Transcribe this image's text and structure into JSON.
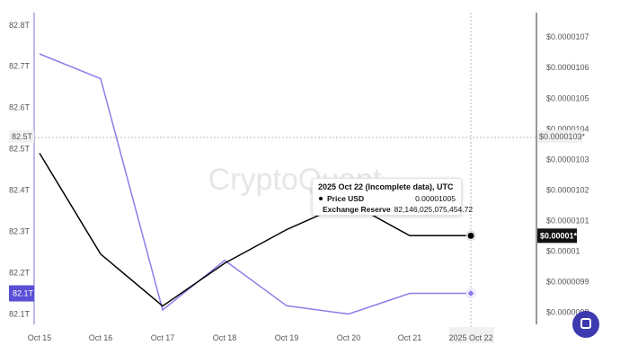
{
  "chart_data": {
    "type": "line",
    "x": [
      "Oct 15",
      "Oct 16",
      "Oct 17",
      "Oct 18",
      "Oct 19",
      "Oct 20",
      "Oct 21",
      "2025 Oct 22"
    ],
    "series": [
      {
        "name": "Price USD",
        "axis": "right",
        "color": "#000000",
        "values": [
          1.032e-05,
          9.99e-06,
          9.82e-06,
          9.96e-06,
          1.007e-05,
          1.016e-05,
          1.005e-05,
          1.005e-05
        ]
      },
      {
        "name": "Exchange Reserve",
        "axis": "left",
        "color": "#8a7fe8",
        "values": [
          82.73,
          82.67,
          82.11,
          82.23,
          82.12,
          82.1,
          82.15,
          82.15
        ]
      }
    ],
    "left_axis": {
      "ticks": [
        "82.1T",
        "82.2T",
        "82.3T",
        "82.4T",
        "82.5T",
        "82.6T",
        "82.7T",
        "82.8T"
      ],
      "tick_values": [
        82.1,
        82.2,
        82.3,
        82.4,
        82.5,
        82.6,
        82.7,
        82.8
      ],
      "range": [
        82.075,
        82.83
      ],
      "crosshair_label": "82.5T",
      "crosshair_value": 82.53,
      "current_label": "82.1T"
    },
    "right_axis": {
      "ticks": [
        "$0.0000098",
        "$0.0000099",
        "$0.00001",
        "$0.0000101",
        "$0.0000102",
        "$0.0000103",
        "$0.0000104",
        "$0.0000105",
        "$0.0000106",
        "$0.0000107"
      ],
      "tick_values": [
        9.8e-06,
        9.9e-06,
        1e-05,
        1.01e-05,
        1.02e-05,
        1.03e-05,
        1.04e-05,
        1.05e-05,
        1.06e-05,
        1.07e-05
      ],
      "range": [
        9.76e-06,
        1.078e-05
      ],
      "crosshair_label": "$0.0000103*",
      "current_label": "$0.00001*"
    },
    "crosshair_x": "2025 Oct 22",
    "watermark": "CryptoQuant",
    "tooltip": {
      "title": "2025 Oct 22 (Incomplete data), UTC",
      "rows": [
        {
          "name": "Price USD",
          "value": "0.00001005"
        },
        {
          "name": "Exchange Reserve",
          "value": "82,146,025,075,454.72"
        }
      ]
    },
    "grid": false,
    "legend": "none"
  },
  "colors": {
    "price_line": "#000000",
    "reserve_line": "#8a7fe8",
    "left_axis_line": "#7b6fd6",
    "left_highlight": "#5b4fd6",
    "crosshair": "#b8b8b8",
    "support_button": "#3d3aaf"
  },
  "support_button": {
    "icon": "chat-bubble-icon"
  }
}
